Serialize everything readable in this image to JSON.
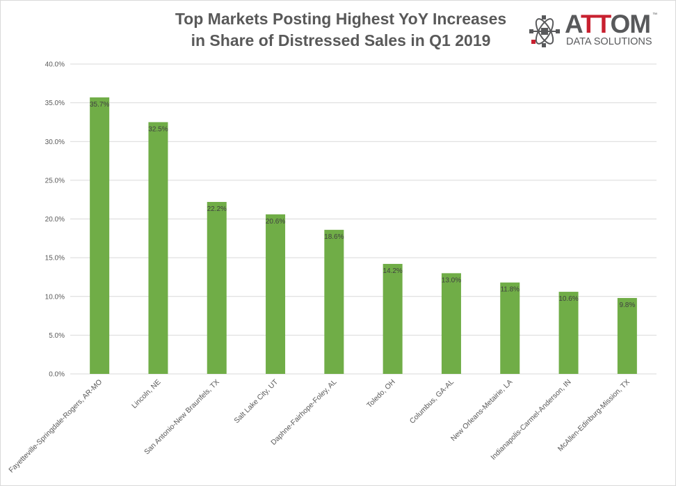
{
  "chart_data": {
    "type": "bar",
    "title": "Top Markets Posting Highest YoY Increases in Share of Distressed Sales in Q1 2019",
    "title_lines": [
      "Top Markets Posting Highest YoY Increases",
      "in Share of Distressed Sales in Q1 2019"
    ],
    "categories": [
      "Fayetteville-Springdale-Rogers, AR-MO",
      "Lincoln, NE",
      "San Antonio-New Braunfels, TX",
      "Salt Lake City, UT",
      "Daphne-Fairhope-Foley, AL",
      "Toledo, OH",
      "Columbus, GA-AL",
      "New Orleans-Metairie, LA",
      "Indianapolis-Carmel-Anderson, IN",
      "McAllen-Edinburg-Mission, TX"
    ],
    "values": [
      35.7,
      32.5,
      22.2,
      20.6,
      18.6,
      14.2,
      13.0,
      11.8,
      10.6,
      9.8
    ],
    "data_labels": [
      "35.7%",
      "32.5%",
      "22.2%",
      "20.6%",
      "18.6%",
      "14.2%",
      "13.0%",
      "11.8%",
      "10.6%",
      "9.8%"
    ],
    "xlabel": "",
    "ylabel": "",
    "ylim": [
      0,
      40
    ],
    "yticks": [
      "0.0%",
      "5.0%",
      "10.0%",
      "15.0%",
      "20.0%",
      "25.0%",
      "30.0%",
      "35.0%",
      "40.0%"
    ],
    "grid": true,
    "bar_color": "#70ad47"
  },
  "logo": {
    "word_a": "A",
    "word_tt": "TT",
    "word_om": "OM",
    "tm": "™",
    "sub": "DATA SOLUTIONS"
  }
}
